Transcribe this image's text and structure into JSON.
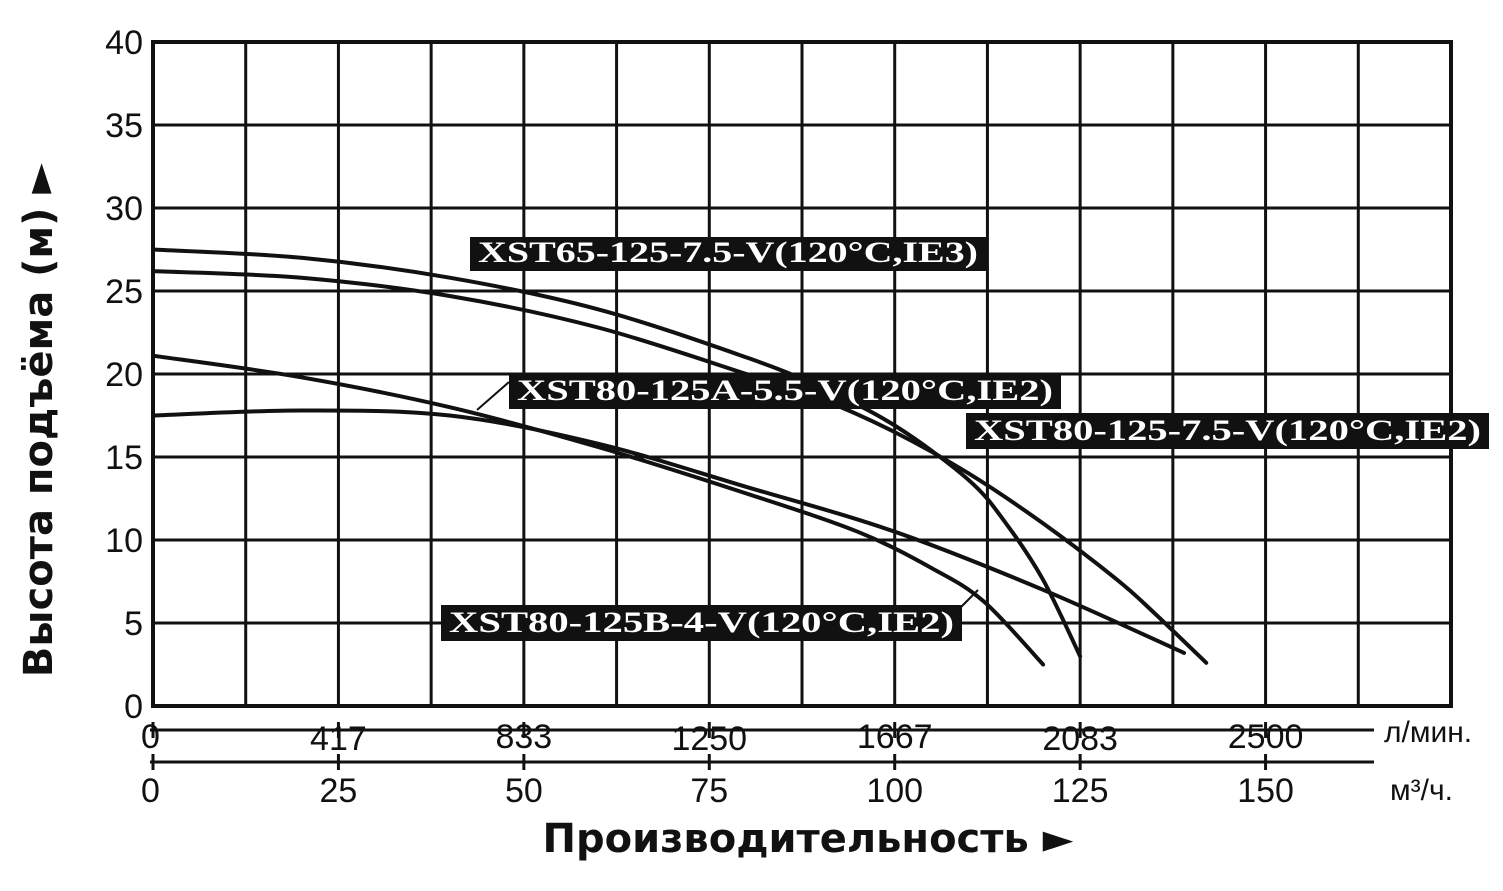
{
  "chart_data": {
    "type": "line",
    "ylabel": "Высота подъёма (м) ►",
    "xlabel": "Производительность ►",
    "ylim": [
      0,
      40
    ],
    "y_ticks": [
      "0",
      "5",
      "10",
      "15",
      "20",
      "25",
      "30",
      "35",
      "40"
    ],
    "x_unit_primary": "л/мин.",
    "x_ticks_primary": [
      "0",
      "417",
      "833",
      "1250",
      "1667",
      "2083",
      "2500"
    ],
    "x_unit_secondary": "м³/ч.",
    "x_ticks_secondary": [
      "0",
      "25",
      "50",
      "75",
      "100",
      "125",
      "150"
    ],
    "xlim_m3h": [
      0,
      175
    ],
    "grid": true,
    "series": [
      {
        "name": "XST65-125-7.5-V(120°C,IE3)",
        "x": [
          0,
          20,
          40,
          60,
          80,
          90,
          100,
          110,
          115,
          120,
          125
        ],
        "y": [
          27.5,
          27.0,
          25.8,
          23.9,
          21.0,
          19.2,
          16.9,
          13.6,
          11.0,
          7.6,
          3.0
        ]
      },
      {
        "name": "XST80-125-7.5-V(120°C,IE2)",
        "x": [
          0,
          20,
          40,
          60,
          80,
          90,
          100,
          110,
          120,
          130,
          135,
          142
        ],
        "y": [
          26.2,
          25.8,
          24.7,
          22.8,
          20.0,
          18.5,
          16.5,
          14.0,
          11.0,
          7.6,
          5.6,
          2.6
        ]
      },
      {
        "name": "XST80-125A-5.5-V(120°C,IE2)",
        "x": [
          0,
          20,
          40,
          60,
          80,
          100,
          120,
          139
        ],
        "y": [
          17.5,
          17.8,
          17.5,
          15.8,
          13.2,
          10.5,
          7.0,
          3.2
        ]
      },
      {
        "name": "XST80-125B-4-V(120°C,IE2)",
        "x": [
          0,
          20,
          40,
          60,
          80,
          95,
          105,
          112,
          120
        ],
        "y": [
          21.1,
          19.8,
          18.0,
          15.6,
          12.8,
          10.5,
          8.3,
          6.3,
          2.5
        ]
      }
    ]
  }
}
